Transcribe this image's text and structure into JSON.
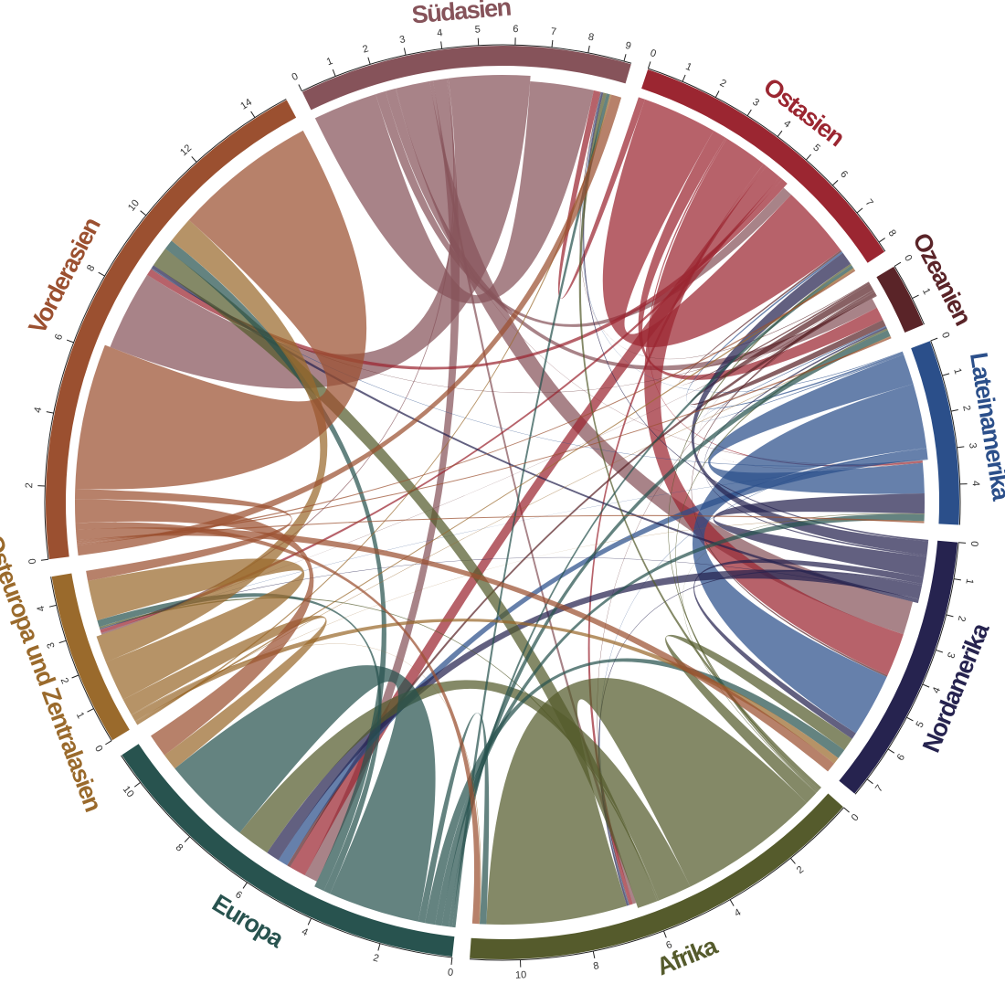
{
  "chart_data": {
    "type": "chord",
    "regions": [
      {
        "name": "Südasien",
        "color": "#86535a",
        "ticks": [
          0,
          1,
          2,
          3,
          4,
          5,
          6,
          7,
          8,
          9
        ]
      },
      {
        "name": "Ostasien",
        "color": "#9b2631",
        "ticks": [
          0,
          1,
          2,
          3,
          4,
          5,
          6,
          7,
          8
        ]
      },
      {
        "name": "Ozeanien",
        "color": "#5a2428",
        "ticks": [
          0,
          1
        ]
      },
      {
        "name": "Lateinamerika",
        "color": "#2b4f8a",
        "ticks": [
          0,
          1,
          2,
          3,
          4
        ]
      },
      {
        "name": "Nordamerika",
        "color": "#26234f",
        "ticks": [
          0,
          1,
          2,
          3,
          4,
          5,
          6,
          7
        ]
      },
      {
        "name": "Afrika",
        "color": "#555b2c",
        "ticks": [
          0,
          2,
          4,
          6,
          8,
          10
        ]
      },
      {
        "name": "Europa",
        "color": "#28534f",
        "ticks": [
          0,
          2,
          4,
          6,
          8,
          10
        ]
      },
      {
        "name": "Osteuropa und Zentralasien",
        "color": "#9a6a2c",
        "ticks": [
          0,
          1,
          2,
          3,
          4
        ]
      },
      {
        "name": "Vorderasien",
        "color": "#9b5030",
        "ticks": [
          0,
          2,
          4,
          6,
          8,
          10,
          12,
          14
        ]
      }
    ],
    "flows": [
      [
        1.9,
        0.3,
        0.3,
        0.02,
        1.0,
        0.1,
        0.4,
        0.05,
        2.4
      ],
      [
        0.2,
        2.2,
        0.4,
        0.05,
        1.3,
        0.1,
        0.5,
        0.1,
        0.2
      ],
      [
        0.02,
        0.05,
        0.2,
        0.01,
        0.05,
        0.02,
        0.1,
        0.01,
        0.02
      ],
      [
        0.02,
        0.05,
        0.03,
        0.9,
        1.9,
        0.02,
        0.3,
        0.01,
        0.02
      ],
      [
        0.05,
        0.4,
        0.05,
        0.6,
        0.2,
        0.05,
        0.4,
        0.02,
        0.1
      ],
      [
        0.1,
        0.05,
        0.05,
        0.02,
        0.4,
        4.2,
        1.0,
        0.05,
        0.6
      ],
      [
        0.1,
        0.1,
        0.2,
        0.2,
        0.3,
        0.2,
        2.7,
        0.2,
        0.3
      ],
      [
        0.05,
        0.05,
        0.02,
        0.01,
        0.2,
        0.02,
        0.5,
        1.2,
        0.8
      ],
      [
        0.3,
        0.05,
        0.05,
        0.05,
        0.3,
        0.2,
        0.7,
        0.3,
        4.3
      ]
    ]
  }
}
